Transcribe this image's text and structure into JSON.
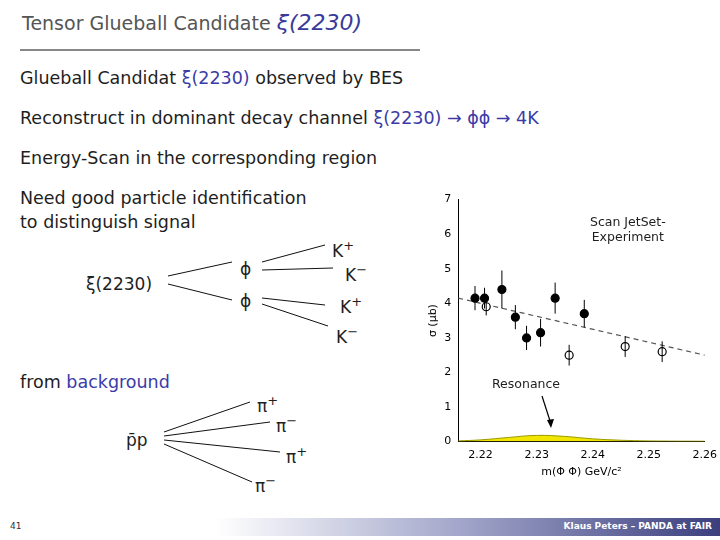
{
  "header": {
    "title": [
      {
        "text": "Tensor Glueball Candidate "
      },
      {
        "text": "ξ(2230)",
        "style": "italic"
      }
    ]
  },
  "lines": [
    [
      {
        "text": "Glueball Candidat "
      },
      {
        "text": "ξ(2230)",
        "color": "#3b3ba8"
      },
      {
        "text": " observed by BES"
      }
    ],
    [
      {
        "text": "Reconstruct in dominant decay channel "
      },
      {
        "text": "ξ(2230) → ϕϕ → 4K",
        "color": "#3b3ba8"
      }
    ],
    [
      {
        "text": "Energy-Scan in the corresponding region"
      }
    ],
    [
      {
        "text": "Need good particle identification"
      }
    ],
    [
      {
        "text": "to distinguish signal"
      }
    ],
    [
      {
        "text": "from "
      },
      {
        "text": "background",
        "color": "#3b3ba8"
      }
    ]
  ],
  "signal_decay": {
    "parent": "ξ(2230)",
    "intermediates": [
      "ϕ",
      "ϕ"
    ],
    "products": [
      {
        "label": "K",
        "charge": "+"
      },
      {
        "label": "K",
        "charge": "−"
      },
      {
        "label": "K",
        "charge": "+"
      },
      {
        "label": "K",
        "charge": "−"
      }
    ]
  },
  "background_decay": {
    "parent": "p̄p",
    "products": [
      {
        "label": "π",
        "charge": "+"
      },
      {
        "label": "π",
        "charge": "−"
      },
      {
        "label": "π",
        "charge": "+"
      },
      {
        "label": "π",
        "charge": "−"
      }
    ]
  },
  "footer": {
    "page": "41",
    "text": "Klaus Peters – PANDA at FAIR"
  },
  "chart_data": {
    "type": "scatter",
    "x_label": "m(Φ Φ) GeV/c²",
    "y_label": "σ (μb)",
    "annotations": [
      [
        "Scan JetSet-",
        "Experiment"
      ],
      [
        "Resonance"
      ]
    ],
    "xlim": [
      2.216,
      2.26
    ],
    "xticks": [
      2.22,
      2.23,
      2.24,
      2.25,
      2.26
    ],
    "ylim": [
      0,
      7
    ],
    "yticks": [
      0,
      1,
      2,
      3,
      4,
      5,
      6,
      7
    ],
    "grid": false,
    "series": [
      {
        "type": "scatter",
        "marker": "filled_circle",
        "color": "#000000",
        "x": [
          2.219,
          2.2207,
          2.2238,
          2.2262,
          2.2282,
          2.2307,
          2.2333,
          2.2385
        ],
        "values": [
          4.15,
          4.15,
          4.4,
          3.6,
          3.0,
          3.15,
          4.15,
          3.7
        ],
        "errors": [
          0.35,
          0.3,
          0.55,
          0.35,
          0.35,
          0.4,
          0.45,
          0.4
        ]
      },
      {
        "type": "scatter",
        "marker": "open_circle",
        "color": "#000000",
        "x": [
          2.221,
          2.2358,
          2.2458,
          2.2524
        ],
        "values": [
          3.9,
          2.5,
          2.75,
          2.6
        ],
        "errors": [
          0.25,
          0.3,
          0.3,
          0.3
        ]
      },
      {
        "type": "line",
        "line_style": "dashed",
        "color": "#555555",
        "x": [
          2.216,
          2.26
        ],
        "values": [
          4.15,
          2.5
        ]
      },
      {
        "type": "area",
        "color": "#f2e600",
        "x": [
          2.216,
          2.22,
          2.225,
          2.23,
          2.235,
          2.24,
          2.245,
          2.25,
          2.26
        ],
        "values": [
          0.02,
          0.05,
          0.12,
          0.18,
          0.15,
          0.08,
          0.04,
          0.02,
          0.01
        ]
      }
    ]
  }
}
